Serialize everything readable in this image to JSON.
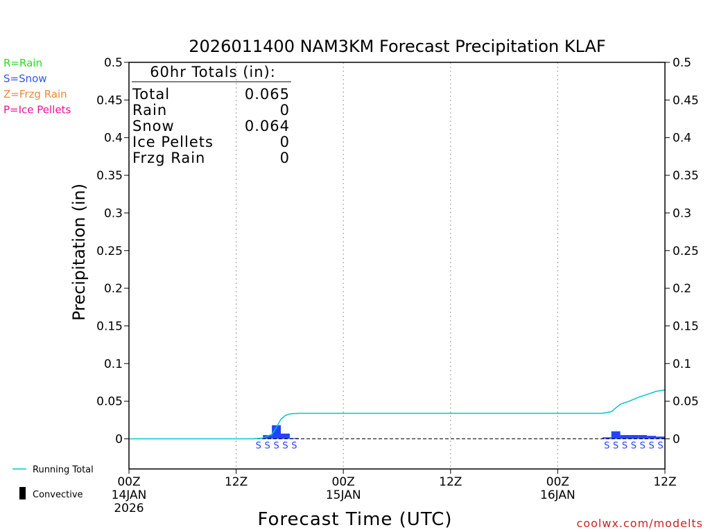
{
  "chart_data": {
    "type": "bar",
    "title": "2026011400 NAM3KM Forecast Precipitation KLAF",
    "xlabel": "Forecast Time (UTC)",
    "ylabel": "Precipitation (in)",
    "ylim": [
      -0.04,
      0.5
    ],
    "xlim": [
      0,
      60
    ],
    "y_ticks": [
      "0",
      "0.05",
      "0.1",
      "0.15",
      "0.2",
      "0.25",
      "0.3",
      "0.35",
      "0.4",
      "0.45",
      "0.5"
    ],
    "y_tick_values": [
      0,
      0.05,
      0.1,
      0.15,
      0.2,
      0.25,
      0.3,
      0.35,
      0.4,
      0.45,
      0.5
    ],
    "x_ticks": [
      {
        "hour": 0,
        "label": "00Z",
        "date": "14JAN",
        "year": "2026"
      },
      {
        "hour": 12,
        "label": "12Z",
        "date": "",
        "year": ""
      },
      {
        "hour": 24,
        "label": "00Z",
        "date": "15JAN",
        "year": ""
      },
      {
        "hour": 36,
        "label": "12Z",
        "date": "",
        "year": ""
      },
      {
        "hour": 48,
        "label": "00Z",
        "date": "16JAN",
        "year": ""
      },
      {
        "hour": 60,
        "label": "12Z",
        "date": "",
        "year": ""
      }
    ],
    "grid_x_hours": [
      12,
      24,
      36,
      48
    ],
    "bars": [
      {
        "hour": 15,
        "value": 0.001,
        "type": "S"
      },
      {
        "hour": 16,
        "value": 0.005,
        "type": "S"
      },
      {
        "hour": 17,
        "value": 0.018,
        "type": "S"
      },
      {
        "hour": 18,
        "value": 0.007,
        "type": "S"
      },
      {
        "hour": 19,
        "value": 0.001,
        "type": "S"
      },
      {
        "hour": 54,
        "value": 0.002,
        "type": "S"
      },
      {
        "hour": 55,
        "value": 0.01,
        "type": "S"
      },
      {
        "hour": 56,
        "value": 0.005,
        "type": "S"
      },
      {
        "hour": 57,
        "value": 0.005,
        "type": "S"
      },
      {
        "hour": 58,
        "value": 0.005,
        "type": "S"
      },
      {
        "hour": 59,
        "value": 0.004,
        "type": "S"
      },
      {
        "hour": 60,
        "value": 0.003,
        "type": "S"
      }
    ],
    "running_total": {
      "name": "Running Total",
      "color": "#00c8c8",
      "points": [
        [
          0,
          0
        ],
        [
          14,
          0
        ],
        [
          15,
          0.001
        ],
        [
          16,
          0.006
        ],
        [
          16.5,
          0.015
        ],
        [
          17,
          0.026
        ],
        [
          17.5,
          0.031
        ],
        [
          18,
          0.033
        ],
        [
          19,
          0.034
        ],
        [
          53,
          0.034
        ],
        [
          54,
          0.036
        ],
        [
          55,
          0.046
        ],
        [
          56,
          0.05
        ],
        [
          57,
          0.055
        ],
        [
          58,
          0.059
        ],
        [
          59,
          0.063
        ],
        [
          60,
          0.065
        ]
      ]
    },
    "totals_box": {
      "heading": "60hr Totals (in):",
      "rows": [
        {
          "label": "Total",
          "value": "0.065"
        },
        {
          "label": "Rain",
          "value": "0"
        },
        {
          "label": "Snow",
          "value": "0.064"
        },
        {
          "label": "Ice Pellets",
          "value": "0"
        },
        {
          "label": "Frzg Rain",
          "value": "0"
        }
      ]
    },
    "type_legend": [
      {
        "text": "R=Rain",
        "color": "#22dd22"
      },
      {
        "text": "S=Snow",
        "color": "#3355ee"
      },
      {
        "text": "Z=Frzg Rain",
        "color": "#ee8833"
      },
      {
        "text": "P=Ice Pellets",
        "color": "#ee1199"
      }
    ],
    "bottom_legend": [
      {
        "text": "Running Total",
        "color": "#00c8c8"
      },
      {
        "text": "Convective",
        "color": "#000000"
      }
    ],
    "snow_color": "#2244ff",
    "watermark": "coolwx.com/modelts",
    "watermark_color": "#cc2222"
  }
}
